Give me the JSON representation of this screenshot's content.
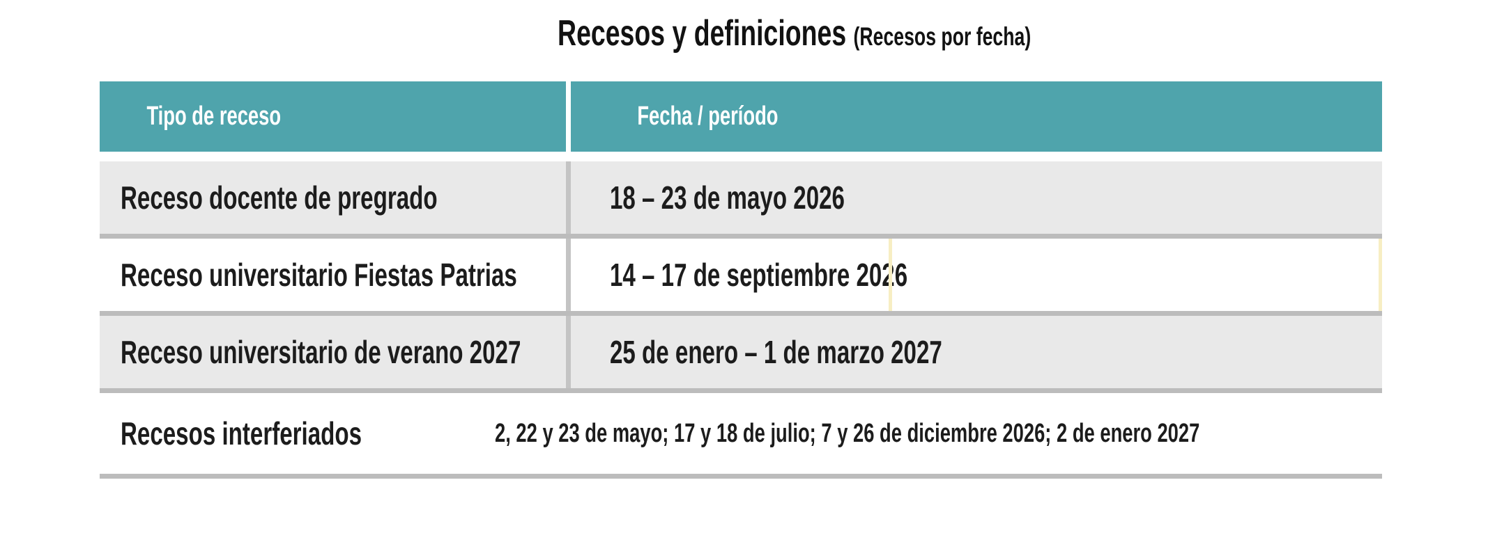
{
  "page": {
    "title": "Recesos y definiciones",
    "subtitle": "(Recesos por fecha)"
  },
  "table": {
    "headers": [
      "Tipo de receso",
      "Fecha / período"
    ],
    "rows": [
      {
        "tipo": "Receso docente de pregrado",
        "fecha": "18 – 23 de mayo 2026"
      },
      {
        "tipo": "Receso universitario Fiestas Patrias",
        "fecha": "14 – 17 de septiembre 2026"
      },
      {
        "tipo": "Receso universitario de verano 2027",
        "fecha": "25 de enero – 1 de marzo 2027"
      },
      {
        "tipo": "Recesos interferiados",
        "fecha": "2, 22 y 23 de mayo; 17 y 18 de julio; 7 y 26 de diciembre 2026; 2 de enero 2027"
      }
    ]
  },
  "colors": {
    "header_bg": "#4FA4AC",
    "header_text": "#FFFFFF",
    "row_alt_bg": "#E9E9E9",
    "row_bg": "#FFFFFF",
    "row_separator": "#BCBCBC",
    "column_divider": "#C4C4C4",
    "body_text": "#1C1C1C",
    "highlight_line": "#F7EEC3"
  }
}
